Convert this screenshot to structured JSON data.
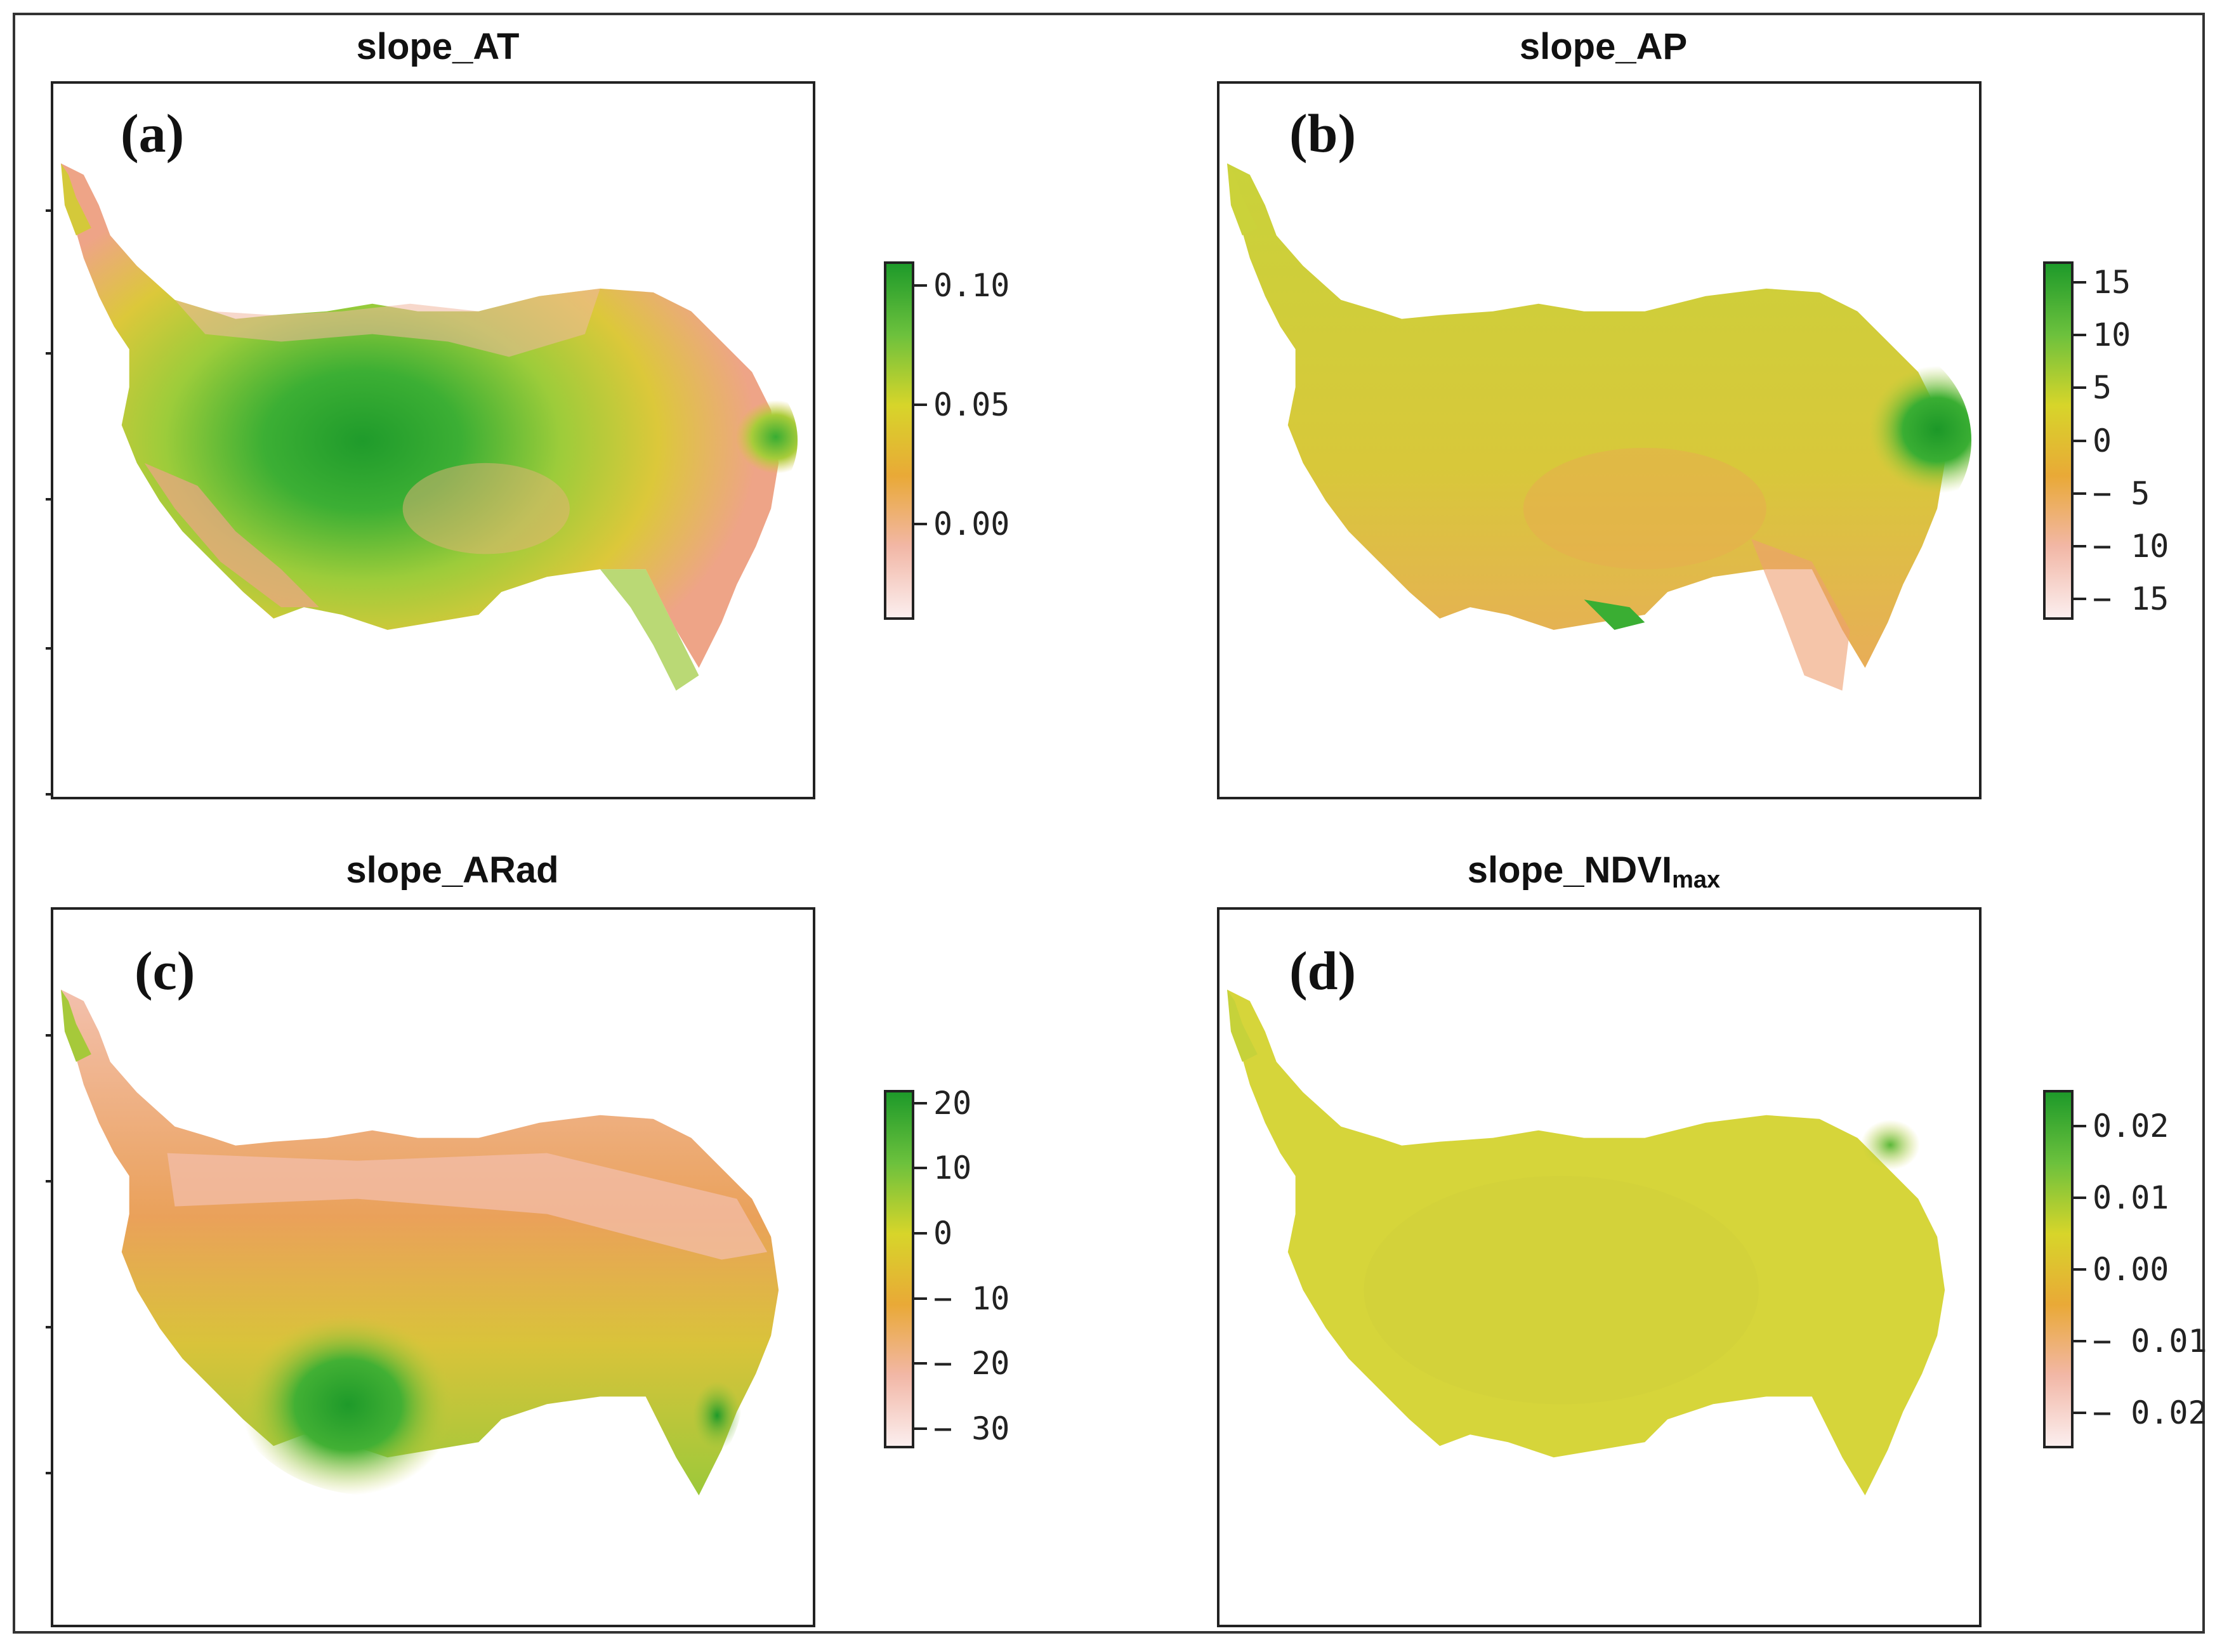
{
  "panels": [
    {
      "id": "a",
      "title": "slope_AT",
      "label": "(a)",
      "colorbar": {
        "gradient": [
          "#1e9a2a",
          "#6cc13d",
          "#d7d52a",
          "#e9a937",
          "#f2b7a6",
          "#fbeeee"
        ],
        "ticks": [
          {
            "value": 0.1,
            "text": "0.10"
          },
          {
            "value": 0.05,
            "text": "0.05"
          },
          {
            "value": 0.0,
            "text": "0.00"
          }
        ],
        "vmin": -0.04,
        "vmax": 0.11
      }
    },
    {
      "id": "b",
      "title": "slope_AP",
      "label": "(b)",
      "colorbar": {
        "gradient": [
          "#1e9a2a",
          "#6cc13d",
          "#d7d52a",
          "#e9a937",
          "#f2b7a6",
          "#fbeeee"
        ],
        "ticks": [
          {
            "value": 15,
            "text": "15"
          },
          {
            "value": 10,
            "text": "10"
          },
          {
            "value": 5,
            "text": "5"
          },
          {
            "value": 0,
            "text": "0"
          },
          {
            "value": -5,
            "text": "− 5"
          },
          {
            "value": -10,
            "text": "− 10"
          },
          {
            "value": -15,
            "text": "− 15"
          }
        ],
        "vmin": -17,
        "vmax": 17
      }
    },
    {
      "id": "c",
      "title": "slope_ARad",
      "label": "(c)",
      "colorbar": {
        "gradient": [
          "#1e9a2a",
          "#6cc13d",
          "#d7d52a",
          "#e9a937",
          "#f2b7a6",
          "#fbeeee"
        ],
        "ticks": [
          {
            "value": 20,
            "text": "20"
          },
          {
            "value": 10,
            "text": "10"
          },
          {
            "value": 0,
            "text": "0"
          },
          {
            "value": -10,
            "text": "− 10"
          },
          {
            "value": -20,
            "text": "− 20"
          },
          {
            "value": -30,
            "text": "− 30"
          }
        ],
        "vmin": -33,
        "vmax": 22
      }
    },
    {
      "id": "d",
      "title": "slope_NDVI",
      "title_sub": "max",
      "label": "(d)",
      "colorbar": {
        "gradient": [
          "#1e9a2a",
          "#6cc13d",
          "#d7d52a",
          "#e9a937",
          "#f2b7a6",
          "#fbeeee"
        ],
        "ticks": [
          {
            "value": 0.02,
            "text": "0.02"
          },
          {
            "value": 0.01,
            "text": "0.01"
          },
          {
            "value": 0.0,
            "text": "0.00"
          },
          {
            "value": -0.01,
            "text": "− 0.01"
          },
          {
            "value": -0.02,
            "text": "− 0.02"
          }
        ],
        "vmin": -0.025,
        "vmax": 0.025
      }
    }
  ]
}
